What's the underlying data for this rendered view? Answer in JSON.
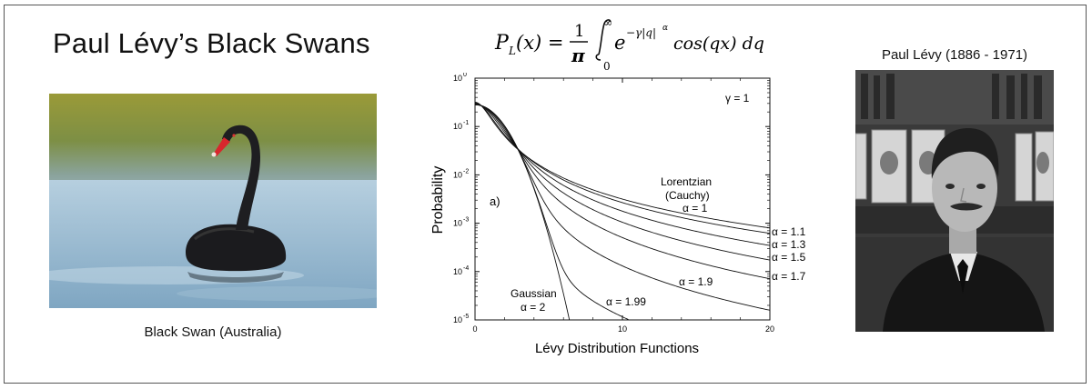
{
  "title": "Paul Lévy’s Black Swans",
  "swan_caption": "Black Swan (Australia)",
  "levy_caption": "Paul Lévy (1886 - 1971)",
  "formula": {
    "lhs_P": "P",
    "lhs_sub": "L",
    "lhs_x": "(x) =",
    "frac_num": "1",
    "frac_den": "π",
    "int_upper": "∞",
    "int_lower": "0",
    "e": "e",
    "exponent": "−γ|q|",
    "exponent_alpha": "α",
    "tail": "cos(qx) dq"
  },
  "chart_data": {
    "type": "line",
    "title": "",
    "xlabel": "Lévy Distribution Functions",
    "ylabel": "Probability",
    "xlim": [
      0,
      20
    ],
    "ylim": [
      1e-05,
      1
    ],
    "yscale": "log",
    "x_ticks": [
      "0",
      "10",
      "20"
    ],
    "y_ticks": [
      {
        "base": "10",
        "exp": "0"
      },
      {
        "base": "10",
        "exp": "-1"
      },
      {
        "base": "10",
        "exp": "-2"
      },
      {
        "base": "10",
        "exp": "-3"
      },
      {
        "base": "10",
        "exp": "-4"
      },
      {
        "base": "10",
        "exp": "-5"
      }
    ],
    "panel_label": "a)",
    "gamma_label": "γ = 1",
    "series": [
      {
        "name": "α = 1",
        "alpha": 1.0
      },
      {
        "name": "α = 1.1",
        "alpha": 1.1
      },
      {
        "name": "α = 1.3",
        "alpha": 1.3
      },
      {
        "name": "α = 1.5",
        "alpha": 1.5
      },
      {
        "name": "α = 1.7",
        "alpha": 1.7
      },
      {
        "name": "α = 1.9",
        "alpha": 1.9
      },
      {
        "name": "α = 1.99",
        "alpha": 1.99
      },
      {
        "name": "α = 2",
        "alpha": 2.0
      }
    ],
    "annotations": {
      "lorentzian": "Lorentzian",
      "cauchy": "(Cauchy)",
      "alpha_1": "α = 1",
      "alpha_11": "α = 1.1",
      "alpha_13": "α = 1.3",
      "alpha_15": "α = 1.5",
      "alpha_17": "α = 1.7",
      "alpha_19": "α = 1.9",
      "alpha_199": "α = 1.99",
      "gaussian": "Gaussian",
      "alpha_2": "α = 2"
    }
  }
}
